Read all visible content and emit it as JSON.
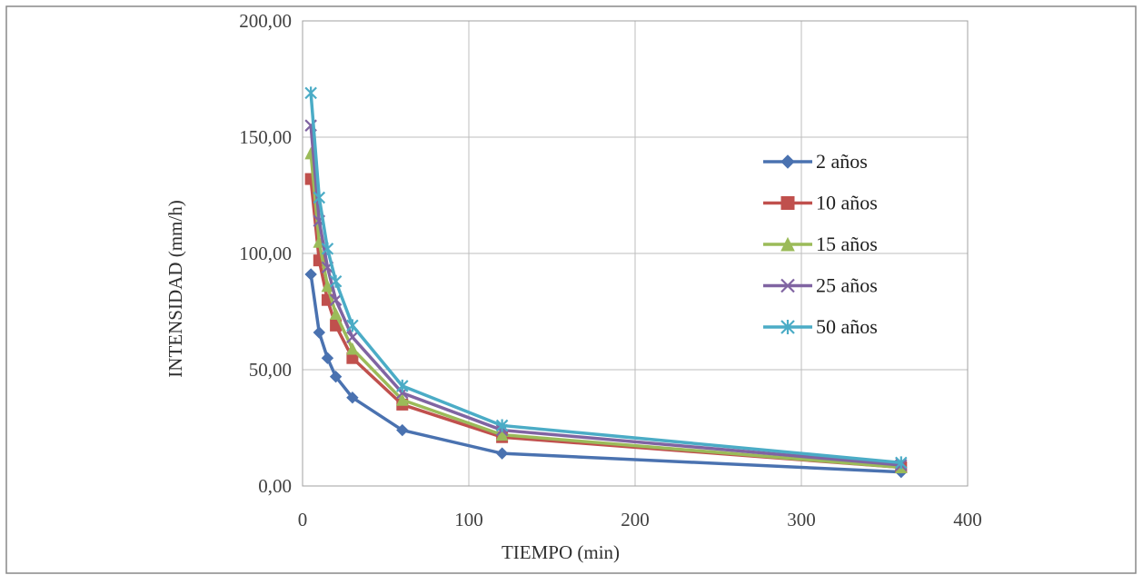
{
  "chart_data": {
    "type": "line",
    "title": "",
    "xlabel": "TIEMPO (min)",
    "ylabel": "INTENSIDAD (mm/h)",
    "xlim": [
      0,
      400
    ],
    "ylim": [
      0,
      200
    ],
    "x_ticks": [
      "0",
      "100",
      "200",
      "300",
      "400"
    ],
    "y_ticks": [
      "0,00",
      "50,00",
      "100,00",
      "150,00",
      "200,00"
    ],
    "grid": true,
    "legend_position": "right",
    "x": [
      5,
      10,
      15,
      20,
      30,
      60,
      120,
      360
    ],
    "series": [
      {
        "name": "2 años",
        "color": "#4a72b0",
        "marker": "diamond",
        "values": [
          91,
          66,
          55,
          47,
          38,
          24,
          14,
          6
        ]
      },
      {
        "name": "10 años",
        "color": "#c0504d",
        "marker": "square",
        "values": [
          132,
          97,
          80,
          69,
          55,
          35,
          21,
          8
        ]
      },
      {
        "name": "15 años",
        "color": "#9bbb59",
        "marker": "triangle",
        "values": [
          143,
          105,
          86,
          74,
          59,
          37,
          22,
          8
        ]
      },
      {
        "name": "25 años",
        "color": "#8064a2",
        "marker": "x",
        "values": [
          155,
          114,
          94,
          80,
          64,
          40,
          24,
          9
        ]
      },
      {
        "name": "50 años",
        "color": "#4bacc6",
        "marker": "star",
        "values": [
          169,
          124,
          102,
          88,
          69,
          43,
          26,
          10
        ]
      }
    ]
  }
}
